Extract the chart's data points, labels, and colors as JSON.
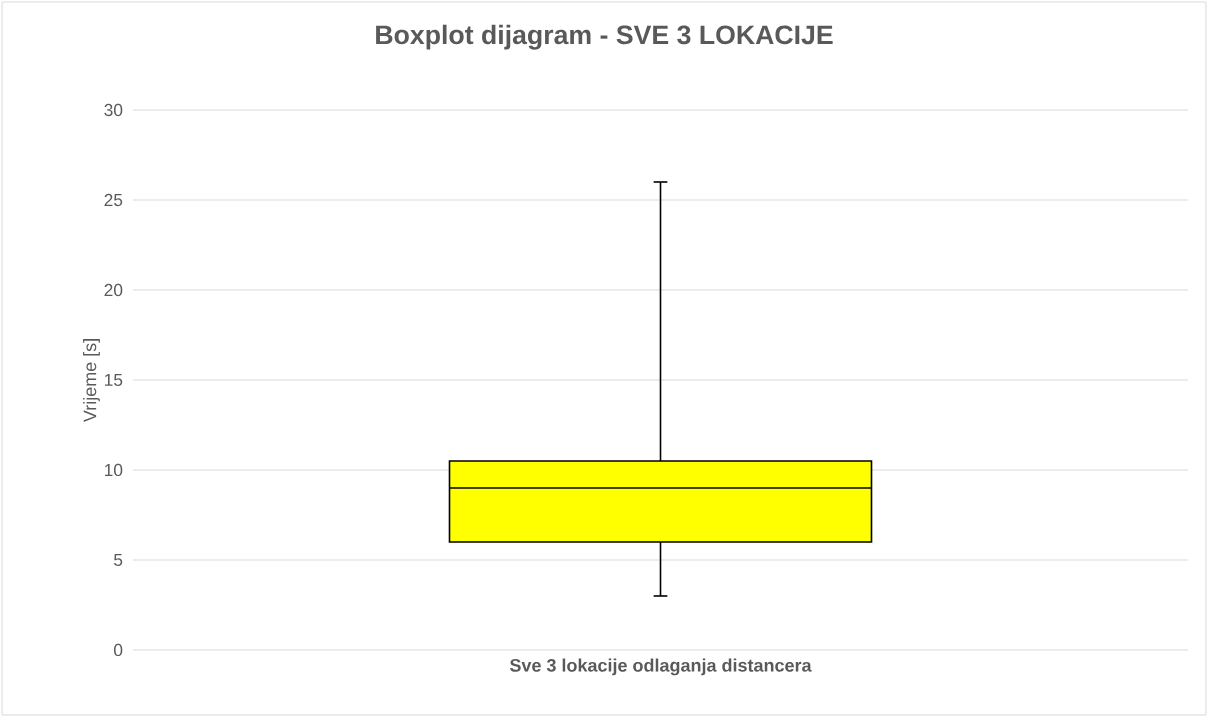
{
  "chart_data": {
    "type": "box",
    "title": "Boxplot dijagram - SVE 3 LOKACIJE",
    "xlabel": "Sve 3 lokacije odlaganja distancera",
    "ylabel": "Vrijeme [s]",
    "categories": [
      null
    ],
    "series": [
      {
        "color": "#ffff00",
        "boxes": [
          {
            "low": 3,
            "q1": 6,
            "median": 9,
            "q3": 10.5,
            "high": 26
          }
        ]
      }
    ],
    "ylim": [
      0,
      30
    ],
    "yticks": [
      0,
      5,
      10,
      15,
      20,
      25,
      30
    ],
    "grid": "y"
  }
}
